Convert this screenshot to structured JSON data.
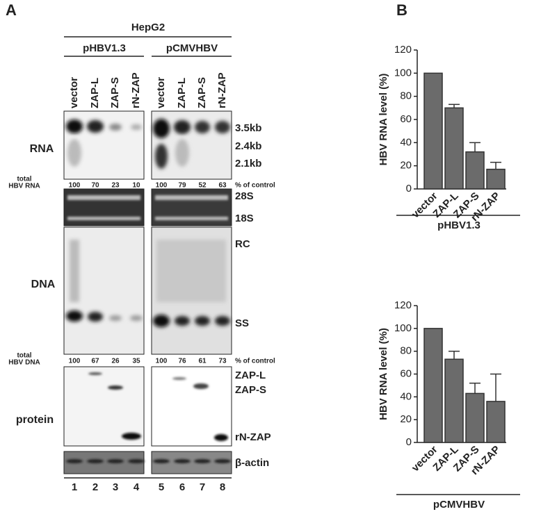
{
  "panel_a": {
    "label": "A",
    "cell_line": "HepG2",
    "constructs": [
      "pHBV1.3",
      "pCMVHBV"
    ],
    "lane_labels": [
      "vector",
      "ZAP-L",
      "ZAP-S",
      "rN-ZAP"
    ],
    "row_labels": {
      "rna": "RNA",
      "dna": "DNA",
      "protein": "protein"
    },
    "rna_quant": {
      "label_line1": "total",
      "label_line2": "HBV RNA",
      "values": [
        100,
        70,
        23,
        10,
        100,
        79,
        52,
        63
      ],
      "unit": "% of control"
    },
    "dna_quant": {
      "label_line1": "total",
      "label_line2": "HBV DNA",
      "values": [
        100,
        67,
        26,
        35,
        100,
        76,
        61,
        73
      ],
      "unit": "% of control"
    },
    "band_labels": {
      "rna_35": "3.5kb",
      "rna_24": "2.4kb",
      "rna_21": "2.1kb",
      "s28": "28S",
      "s18": "18S",
      "rc": "RC",
      "ss": "SS",
      "zapl": "ZAP-L",
      "zaps": "ZAP-S",
      "rnzap": "rN-ZAP",
      "actin": "β-actin"
    },
    "lane_numbers": [
      "1",
      "2",
      "3",
      "4",
      "5",
      "6",
      "7",
      "8"
    ]
  },
  "panel_b": {
    "label": "B"
  },
  "chart_data": [
    {
      "type": "bar",
      "categories": [
        "vector",
        "ZAP-L",
        "ZAP-S",
        "rN-ZAP"
      ],
      "values": [
        100,
        70,
        32,
        17
      ],
      "errors": [
        0,
        3,
        8,
        6
      ],
      "color": "#6b6b6b",
      "ylim": [
        0,
        120
      ],
      "yticks": [
        0,
        20,
        40,
        60,
        80,
        100,
        120
      ],
      "y_label": "HBV RNA level (%)",
      "x_label": "pHBV1.3"
    },
    {
      "type": "bar",
      "categories": [
        "vector",
        "ZAP-L",
        "ZAP-S",
        "rN-ZAP"
      ],
      "values": [
        100,
        73,
        43,
        36
      ],
      "errors": [
        0,
        7,
        9,
        24
      ],
      "color": "#6b6b6b",
      "ylim": [
        0,
        120
      ],
      "yticks": [
        0,
        20,
        40,
        60,
        80,
        100,
        120
      ],
      "y_label": "HBV RNA level (%)",
      "x_label": "pCMVHBV"
    }
  ]
}
